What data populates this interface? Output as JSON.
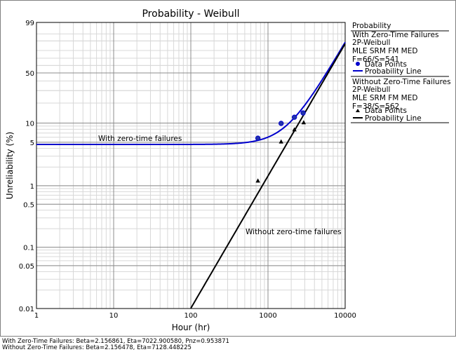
{
  "chart_data": {
    "type": "scatter",
    "title": "Probability - Weibull",
    "xlabel": "Hour (hr)",
    "ylabel": "Unreliability (%)",
    "x_scale": "log",
    "y_scale": "weibull",
    "xlim": [
      1,
      10000
    ],
    "ylim": [
      0.01,
      99
    ],
    "x_ticks": [
      "1",
      "10",
      "100",
      "1000",
      "10000"
    ],
    "y_ticks": [
      "0.01",
      "0.05",
      "0.1",
      "0.5",
      "1",
      "5",
      "10",
      "50",
      "99"
    ],
    "grid": true,
    "legend_position": "right",
    "legend_header": "Probability",
    "series": [
      {
        "name": "With Zero-Time Failures",
        "info": [
          "2P-Weibull",
          "MLE SRM FM MED",
          "F=66/S=541"
        ],
        "color": "#0000cc",
        "marker": "circle",
        "points_label": "Data Points",
        "line_label": "Probability Line",
        "beta": 2.156861,
        "eta": 7022.90058,
        "pnz": 0.953871,
        "points": [
          {
            "x": 740,
            "y": 5.8
          },
          {
            "x": 1480,
            "y": 9.9
          },
          {
            "x": 2200,
            "y": 12.3
          },
          {
            "x": 2850,
            "y": 14.3
          }
        ]
      },
      {
        "name": "Without Zero-Time Failures",
        "info": [
          "2P-Weibull",
          "MLE SRM FM MED",
          "F=38/S=562"
        ],
        "color": "#000000",
        "marker": "triangle",
        "points_label": "Data Points",
        "line_label": "Probability Line",
        "beta": 2.156478,
        "eta": 7128.448225,
        "points": [
          {
            "x": 740,
            "y": 1.2
          },
          {
            "x": 1480,
            "y": 5.1
          },
          {
            "x": 2200,
            "y": 7.9
          },
          {
            "x": 2900,
            "y": 10.2
          }
        ]
      }
    ],
    "annotations": [
      "With zero-time failures",
      "Without zero-time failures"
    ],
    "footer": [
      "With Zero-Time Failures: Beta=2.156861, Eta=7022.900580, Pnz=0.953871",
      "Without Zero-Time Failures: Beta=2.156478, Eta=7128.448225"
    ]
  }
}
